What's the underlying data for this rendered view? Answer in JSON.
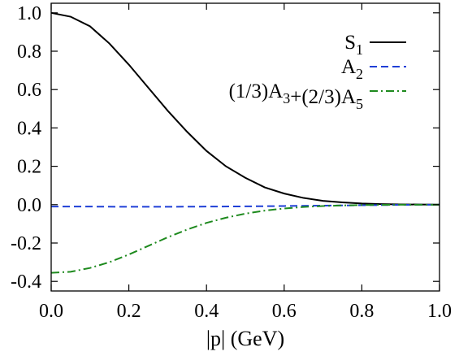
{
  "chart_data": {
    "type": "line",
    "title": "",
    "xlabel": "|p| (GeV)",
    "ylabel": "",
    "xlim": [
      0.0,
      1.0
    ],
    "ylim": [
      -0.45,
      1.05
    ],
    "xticks": [
      0.0,
      0.2,
      0.4,
      0.6,
      0.8,
      1.0
    ],
    "xtick_labels": [
      "0.0",
      "0.2",
      "0.4",
      "0.6",
      "0.8",
      "1.0"
    ],
    "yticks": [
      -0.4,
      -0.2,
      0.0,
      0.2,
      0.4,
      0.6,
      0.8,
      1.0
    ],
    "ytick_labels": [
      "-0.4",
      "-0.2",
      "0.0",
      "0.2",
      "0.4",
      "0.6",
      "0.8",
      "1.0"
    ],
    "grid": false,
    "legend_position": "top-right",
    "series": [
      {
        "name": "S1",
        "legend": {
          "base": "S",
          "sub": "1"
        },
        "color": "#000000",
        "style": "solid",
        "x": [
          0.0,
          0.05,
          0.1,
          0.15,
          0.2,
          0.25,
          0.3,
          0.35,
          0.4,
          0.45,
          0.5,
          0.55,
          0.6,
          0.65,
          0.7,
          0.75,
          0.8,
          0.85,
          0.9,
          0.95,
          1.0
        ],
        "y": [
          1.0,
          0.98,
          0.93,
          0.84,
          0.73,
          0.61,
          0.49,
          0.38,
          0.28,
          0.2,
          0.14,
          0.09,
          0.058,
          0.035,
          0.02,
          0.012,
          0.006,
          0.003,
          0.0015,
          0.0007,
          0.0003
        ]
      },
      {
        "name": "A2",
        "legend": {
          "base": "A",
          "sub": "2"
        },
        "color": "#1f3fd6",
        "style": "dashed",
        "x": [
          0.0,
          0.1,
          0.2,
          0.3,
          0.4,
          0.5,
          0.6,
          0.7,
          0.8,
          0.9,
          1.0
        ],
        "y": [
          -0.01,
          -0.01,
          -0.011,
          -0.011,
          -0.01,
          -0.009,
          -0.007,
          -0.005,
          -0.003,
          -0.001,
          0.0
        ]
      },
      {
        "name": "(1/3)A3+(2/3)A5",
        "legend": {
          "parts": [
            [
              "(1/3)A",
              "3"
            ],
            [
              "+(2/3)A",
              "5"
            ]
          ]
        },
        "color": "#1e8a1e",
        "style": "dashdot",
        "x": [
          0.0,
          0.05,
          0.1,
          0.15,
          0.2,
          0.25,
          0.3,
          0.35,
          0.4,
          0.45,
          0.5,
          0.55,
          0.6,
          0.65,
          0.7,
          0.75,
          0.8,
          0.85,
          0.9,
          0.95,
          1.0
        ],
        "y": [
          -0.355,
          -0.35,
          -0.33,
          -0.3,
          -0.26,
          -0.215,
          -0.17,
          -0.13,
          -0.095,
          -0.068,
          -0.047,
          -0.031,
          -0.02,
          -0.012,
          -0.007,
          -0.004,
          -0.002,
          -0.001,
          -0.0005,
          -0.0002,
          -0.0001
        ]
      }
    ]
  }
}
